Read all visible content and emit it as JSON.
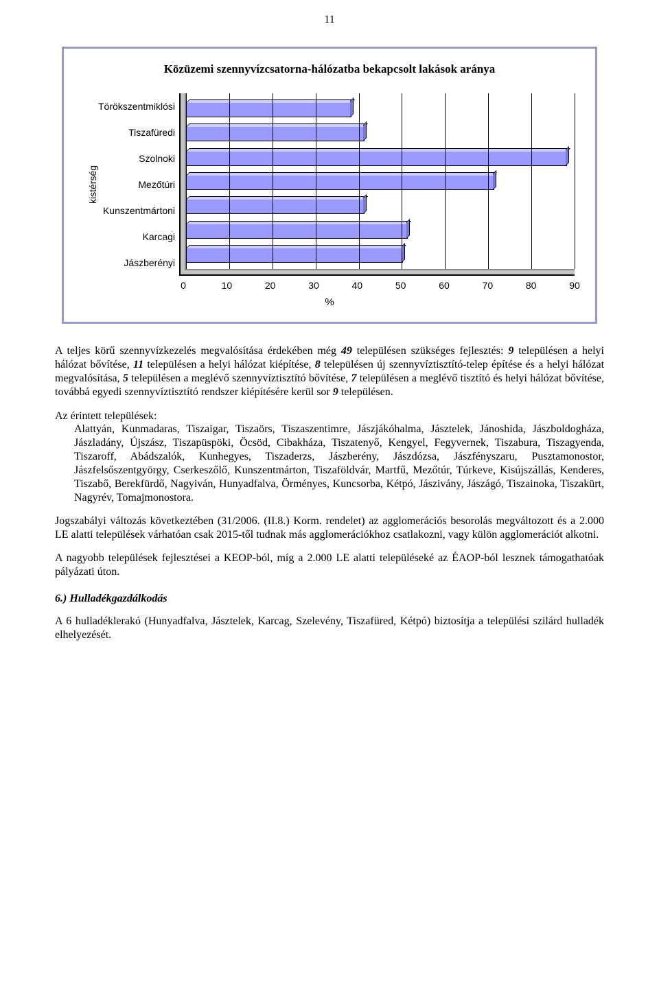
{
  "page_number": "11",
  "chart": {
    "type": "bar-horizontal-3d",
    "title": "Közüzemi szennyvízcsatorna-hálózatba bekapcsolt lakások aránya",
    "title_fontsize": 17,
    "y_axis_label": "kistérség",
    "x_axis_label": "%",
    "categories": [
      "Törökszentmiklósi",
      "Tiszafüredi",
      "Szolnoki",
      "Mezőtúri",
      "Kunszentmártoni",
      "Karcagi",
      "Jászberényi"
    ],
    "values": [
      38,
      41,
      88,
      71,
      41,
      51,
      50
    ],
    "x_min": 0,
    "x_max": 90,
    "x_step": 10,
    "bar_face_color": "#9999ff",
    "bar_top_color": "#ccccff",
    "bar_side_color": "#7878dd",
    "border_color": "#9999cc",
    "shadow_color": "#c3c3c3",
    "grid_color": "#000000",
    "tick_font_family": "Arial",
    "tick_fontsize": 14
  },
  "paragraphs": {
    "p1_pre": "A teljes körű szennyvízkezelés megvalósítása érdekében még ",
    "p1_n1": "49",
    "p1_a": " településen szükséges fejlesztés: ",
    "p1_n2": "9",
    "p1_b": " településen a helyi hálózat bővítése, ",
    "p1_n3": "11",
    "p1_c": " településen a helyi hálózat kiépítése, ",
    "p1_n4": "8",
    "p1_d": " településen új szennyvíztisztító-telep építése és a helyi hálózat megvalósítása, ",
    "p1_n5": "5",
    "p1_e": " településen a meglévő szennyvíztisztító bővítése, ",
    "p1_n6": "7",
    "p1_f": " településen a meglévő tisztító és helyi hálózat bővítése, továbbá egyedi szennyvíztisztító rendszer kiépítésére kerül sor ",
    "p1_n7": "9",
    "p1_g": " településen.",
    "list_intro": "Az érintett települések:",
    "list_body": "Alattyán, Kunmadaras, Tiszaigar, Tiszaörs, Tiszaszentimre, Jászjákóhalma, Jásztelek, Jánoshida, Jászboldogháza, Jászladány, Újszász, Tiszapüspöki, Öcsöd, Cibakháza, Tiszatenyő, Kengyel, Fegyvernek, Tiszabura, Tiszagyenda, Tiszaroff, Abádszalók, Kunhegyes, Tiszaderzs, Jászberény, Jászdózsa, Jászfényszaru, Pusztamonostor, Jászfelsőszentgyörgy, Cserkeszőlő, Kunszentmárton, Tiszaföldvár, Martfű, Mezőtúr, Túrkeve, Kisújszállás, Kenderes, Tiszabő, Berekfürdő, Nagyiván, Hunyadfalva, Örményes, Kuncsorba, Kétpó, Jászivány, Jászágó, Tiszainoka, Tiszakürt, Nagyrév, Tomajmonostora.",
    "p2": "Jogszabályi változás következtében (31/2006. (II.8.) Korm. rendelet) az agglomerációs besorolás megváltozott és a 2.000 LE alatti települések várhatóan csak 2015-től tudnak más agglomerációkhoz csatlakozni, vagy külön agglomerációt alkotni.",
    "p3": "A nagyobb települések fejlesztései a KEOP-ból, míg a 2.000 LE alatti településeké az ÉAOP-ból lesznek támogathatóak pályázati úton.",
    "section_header": "6.) Hulladékgazdálkodás",
    "p4": "A 6 hulladéklerakó (Hunyadfalva, Jásztelek, Karcag, Szelevény, Tiszafüred, Kétpó) biztosítja a települési szilárd hulladék elhelyezését."
  }
}
